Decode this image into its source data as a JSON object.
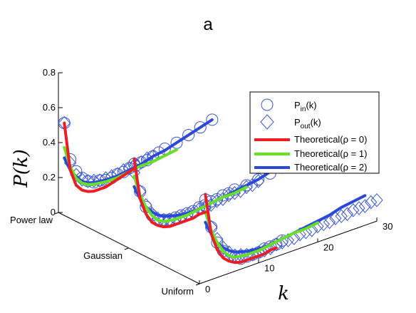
{
  "chart_data": {
    "type": "line",
    "title": "a",
    "ylabel": "P(k)",
    "xlabel": "k",
    "ylim": [
      0,
      0.8
    ],
    "xlim": [
      0,
      30
    ],
    "y_ticks": [
      0,
      0.2,
      0.4,
      0.6,
      0.8
    ],
    "y_tick_labels": [
      "0",
      "0.2",
      "0.4",
      "0.6",
      "0.8"
    ],
    "x_ticks": [
      0,
      10,
      20,
      30
    ],
    "x_tick_labels": [
      "0",
      "10",
      "20",
      "30"
    ],
    "depth_categories": [
      "Power law",
      "Gaussian",
      "Uniform"
    ],
    "legend_position": "top-right",
    "colors": {
      "markers": "#3b56d8",
      "theoretical_rho0": "#ee1d23",
      "theoretical_rho1": "#66e024",
      "theoretical_rho2": "#2b49d8"
    },
    "legend": {
      "pin_main": "P",
      "pin_sub": "in",
      "pin_suffix": "(k)",
      "pout_main": "P",
      "pout_sub": "out",
      "pout_suffix": "(k)",
      "rho0": "Theoretical(ρ = 0)",
      "rho1": "Theoretical(ρ = 1)",
      "rho2": "Theoretical(ρ = 2)"
    },
    "series": [
      {
        "name": "Theoretical(ρ = 0)",
        "style": "line",
        "color": "#ee1d23",
        "groups": [
          {
            "category": "Power law",
            "x": [
              1,
              2,
              3,
              4,
              5,
              6,
              7,
              8,
              9,
              10,
              11,
              12,
              13
            ],
            "y": [
              0.5,
              0.22,
              0.12,
              0.08,
              0.06,
              0.05,
              0.05,
              0.05,
              0.06,
              0.07,
              0.08,
              0.09,
              0.1
            ]
          },
          {
            "category": "Gaussian",
            "x": [
              1,
              2,
              3,
              4,
              5,
              6,
              7,
              8,
              9,
              10,
              11,
              12,
              13
            ],
            "y": [
              0.5,
              0.26,
              0.16,
              0.1,
              0.07,
              0.05,
              0.04,
              0.04,
              0.04,
              0.04,
              0.04,
              0.05,
              0.05
            ]
          },
          {
            "category": "Uniform",
            "x": [
              1,
              2,
              3,
              4,
              5,
              6,
              7,
              8,
              9,
              10,
              11,
              12,
              13
            ],
            "y": [
              0.5,
              0.26,
              0.16,
              0.1,
              0.07,
              0.05,
              0.04,
              0.04,
              0.04,
              0.04,
              0.04,
              0.05,
              0.05
            ]
          }
        ]
      },
      {
        "name": "Theoretical(ρ = 1)",
        "style": "line",
        "color": "#66e024",
        "groups": [
          {
            "category": "Power law",
            "x": [
              1,
              2,
              3,
              4,
              5,
              6,
              8,
              10,
              12,
              14,
              16,
              18,
              20
            ],
            "y": [
              0.36,
              0.24,
              0.16,
              0.12,
              0.1,
              0.09,
              0.08,
              0.08,
              0.09,
              0.1,
              0.1,
              0.11,
              0.12
            ]
          },
          {
            "category": "Gaussian",
            "x": [
              1,
              2,
              3,
              4,
              5,
              6,
              8,
              10,
              12,
              14,
              16,
              18,
              20
            ],
            "y": [
              0.4,
              0.28,
              0.2,
              0.14,
              0.1,
              0.08,
              0.07,
              0.07,
              0.08,
              0.09,
              0.1,
              0.1,
              0.11
            ]
          },
          {
            "category": "Uniform",
            "x": [
              1,
              2,
              3,
              4,
              5,
              6,
              8,
              10,
              12,
              14,
              16,
              18,
              20
            ],
            "y": [
              0.4,
              0.28,
              0.2,
              0.14,
              0.1,
              0.08,
              0.07,
              0.07,
              0.08,
              0.09,
              0.1,
              0.1,
              0.11
            ]
          }
        ]
      },
      {
        "name": "Theoretical(ρ = 2)",
        "style": "line",
        "color": "#2b49d8",
        "groups": [
          {
            "category": "Power law",
            "x": [
              1,
              2,
              3,
              4,
              5,
              6,
              8,
              10,
              12,
              14,
              16,
              18,
              20,
              22,
              24,
              26
            ],
            "y": [
              0.3,
              0.22,
              0.17,
              0.13,
              0.11,
              0.1,
              0.09,
              0.09,
              0.1,
              0.11,
              0.13,
              0.14,
              0.16,
              0.18,
              0.2,
              0.22
            ]
          },
          {
            "category": "Gaussian",
            "x": [
              1,
              2,
              3,
              4,
              5,
              6,
              8,
              10,
              12,
              14,
              16,
              18,
              20,
              22,
              24,
              26,
              28
            ],
            "y": [
              0.34,
              0.26,
              0.2,
              0.16,
              0.13,
              0.11,
              0.09,
              0.08,
              0.08,
              0.09,
              0.1,
              0.11,
              0.12,
              0.13,
              0.15,
              0.16,
              0.17
            ]
          },
          {
            "category": "Uniform",
            "x": [
              1,
              2,
              3,
              4,
              5,
              6,
              8,
              10,
              12,
              14,
              16,
              18,
              20,
              22,
              24,
              26,
              28
            ],
            "y": [
              0.34,
              0.26,
              0.2,
              0.16,
              0.13,
              0.11,
              0.09,
              0.08,
              0.08,
              0.09,
              0.1,
              0.11,
              0.12,
              0.13,
              0.15,
              0.16,
              0.17
            ]
          }
        ]
      },
      {
        "name": "P_in(k)",
        "style": "circle",
        "color": "#3b56d8",
        "groups": [
          {
            "category": "Power law",
            "x": [
              1,
              2,
              3,
              4,
              5,
              6,
              7,
              8,
              9,
              10,
              11,
              12,
              13,
              14,
              15,
              16,
              17,
              18,
              20,
              22,
              24,
              26
            ],
            "y": [
              0.5,
              0.28,
              0.2,
              0.15,
              0.12,
              0.1,
              0.1,
              0.09,
              0.09,
              0.1,
              0.1,
              0.11,
              0.11,
              0.12,
              0.12,
              0.13,
              0.14,
              0.15,
              0.16,
              0.18,
              0.2,
              0.22
            ]
          },
          {
            "category": "Gaussian",
            "x": [
              1,
              2,
              3,
              4,
              5,
              6,
              7,
              8,
              9,
              10,
              11,
              12,
              13,
              14,
              15,
              16,
              17,
              18,
              20,
              22,
              24,
              26,
              28
            ],
            "y": [
              0.47,
              0.3,
              0.2,
              0.14,
              0.1,
              0.09,
              0.08,
              0.08,
              0.08,
              0.08,
              0.08,
              0.09,
              0.09,
              0.1,
              0.1,
              0.11,
              0.11,
              0.12,
              0.12,
              0.13,
              0.14,
              0.15,
              0.17
            ]
          },
          {
            "category": "Uniform",
            "x": [
              1,
              2,
              3,
              4,
              5,
              6,
              7,
              8,
              9,
              10,
              11,
              12,
              13,
              14
            ],
            "y": [
              0.47,
              0.3,
              0.2,
              0.14,
              0.1,
              0.08,
              0.06,
              0.06,
              0.06,
              0.06,
              0.07,
              0.07,
              0.07,
              0.08
            ]
          }
        ]
      },
      {
        "name": "P_out(k)",
        "style": "diamond",
        "color": "#3b56d8",
        "groups": [
          {
            "category": "Power law",
            "x": [
              1,
              2,
              3,
              4,
              5,
              6,
              7,
              8,
              9,
              10,
              11,
              12,
              13,
              14,
              15,
              16
            ],
            "y": [
              0.5,
              0.26,
              0.18,
              0.14,
              0.12,
              0.11,
              0.1,
              0.1,
              0.1,
              0.1,
              0.11,
              0.11,
              0.12,
              0.12,
              0.13,
              0.13
            ]
          },
          {
            "category": "Gaussian",
            "x": [
              1,
              2,
              3,
              4,
              5,
              6,
              7,
              8,
              9,
              10,
              11,
              12,
              13,
              14,
              15,
              16,
              17,
              18,
              19,
              20,
              21,
              22
            ],
            "y": [
              0.42,
              0.3,
              0.21,
              0.15,
              0.11,
              0.09,
              0.08,
              0.07,
              0.07,
              0.07,
              0.07,
              0.08,
              0.08,
              0.08,
              0.09,
              0.09,
              0.1,
              0.1,
              0.1,
              0.11,
              0.11,
              0.12
            ]
          },
          {
            "category": "Uniform",
            "x": [
              1,
              2,
              3,
              4,
              5,
              6,
              7,
              8,
              9,
              10,
              11,
              12,
              13,
              14,
              15,
              16,
              17,
              18,
              19,
              20,
              21,
              22,
              23,
              24,
              25,
              26,
              27,
              28,
              29,
              30
            ],
            "y": [
              0.42,
              0.3,
              0.22,
              0.16,
              0.12,
              0.09,
              0.08,
              0.07,
              0.06,
              0.06,
              0.06,
              0.06,
              0.07,
              0.07,
              0.07,
              0.07,
              0.08,
              0.08,
              0.08,
              0.09,
              0.09,
              0.09,
              0.1,
              0.1,
              0.1,
              0.11,
              0.11,
              0.11,
              0.12,
              0.12
            ]
          }
        ]
      }
    ]
  }
}
